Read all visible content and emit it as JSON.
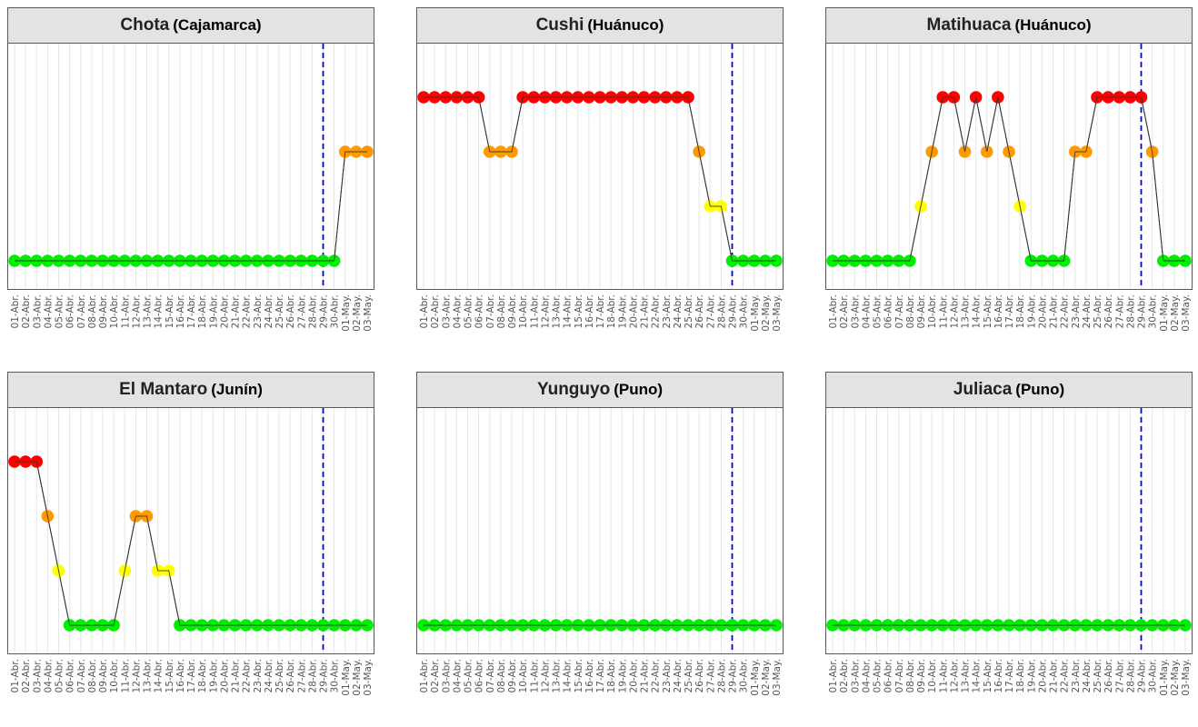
{
  "chart_data": {
    "type": "line",
    "dates": [
      "01-Abr.",
      "02-Abr.",
      "03-Abr.",
      "04-Abr.",
      "05-Abr.",
      "06-Abr.",
      "07-Abr.",
      "08-Abr.",
      "09-Abr.",
      "10-Abr.",
      "11-Abr.",
      "12-Abr.",
      "13-Abr.",
      "14-Abr.",
      "15-Abr.",
      "16-Abr.",
      "17-Abr.",
      "18-Abr.",
      "19-Abr.",
      "20-Abr.",
      "21-Abr.",
      "22-Abr.",
      "23-Abr.",
      "24-Abr.",
      "25-Abr.",
      "26-Abr.",
      "27-Abr.",
      "28-Abr.",
      "29-Abr.",
      "30-Abr.",
      "01-May.",
      "02-May.",
      "03-May."
    ],
    "reference_date": "29-Abr.",
    "level_colors": {
      "1": "#00ee00",
      "2": "#ffff00",
      "3": "#ff9900",
      "4": "#ff0000"
    },
    "line_color": "#333333",
    "reference_line_color": "#0000ee",
    "panels": [
      {
        "name": "Chota",
        "region": "(Cajamarca)",
        "values": [
          1,
          1,
          1,
          1,
          1,
          1,
          1,
          1,
          1,
          1,
          1,
          1,
          1,
          1,
          1,
          1,
          1,
          1,
          1,
          1,
          1,
          1,
          1,
          1,
          1,
          1,
          1,
          1,
          1,
          1,
          3,
          3,
          3
        ]
      },
      {
        "name": "Cushi",
        "region": "(Huánuco)",
        "values": [
          4,
          4,
          4,
          4,
          4,
          4,
          3,
          3,
          3,
          4,
          4,
          4,
          4,
          4,
          4,
          4,
          4,
          4,
          4,
          4,
          4,
          4,
          4,
          4,
          4,
          3,
          2,
          2,
          1,
          1,
          1,
          1,
          1
        ]
      },
      {
        "name": "Matihuaca",
        "region": "(Huánuco)",
        "values": [
          1,
          1,
          1,
          1,
          1,
          1,
          1,
          1,
          2,
          3,
          4,
          4,
          3,
          4,
          3,
          4,
          3,
          2,
          1,
          1,
          1,
          1,
          3,
          3,
          4,
          4,
          4,
          4,
          4,
          3,
          1,
          1,
          1
        ]
      },
      {
        "name": "El Mantaro",
        "region": "(Junín)",
        "values": [
          4,
          4,
          4,
          3,
          2,
          1,
          1,
          1,
          1,
          1,
          2,
          3,
          3,
          2,
          2,
          1,
          1,
          1,
          1,
          1,
          1,
          1,
          1,
          1,
          1,
          1,
          1,
          1,
          1,
          1,
          1,
          1,
          1
        ]
      },
      {
        "name": "Yunguyo",
        "region": "(Puno)",
        "values": [
          1,
          1,
          1,
          1,
          1,
          1,
          1,
          1,
          1,
          1,
          1,
          1,
          1,
          1,
          1,
          1,
          1,
          1,
          1,
          1,
          1,
          1,
          1,
          1,
          1,
          1,
          1,
          1,
          1,
          1,
          1,
          1,
          1
        ]
      },
      {
        "name": "Juliaca",
        "region": "(Puno)",
        "values": [
          1,
          1,
          1,
          1,
          1,
          1,
          1,
          1,
          1,
          1,
          1,
          1,
          1,
          1,
          1,
          1,
          1,
          1,
          1,
          1,
          1,
          1,
          1,
          1,
          1,
          1,
          1,
          1,
          1,
          1,
          1,
          1,
          1
        ]
      }
    ]
  }
}
